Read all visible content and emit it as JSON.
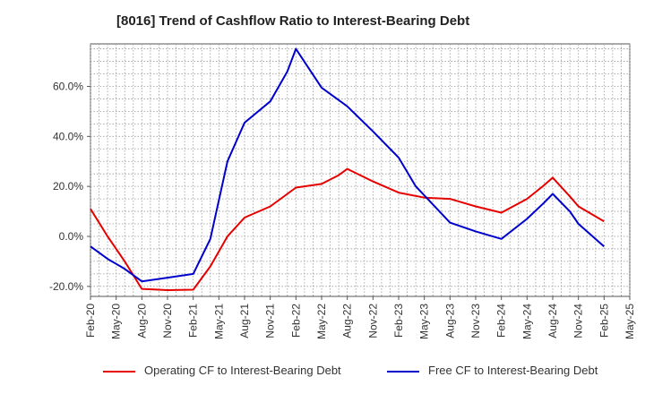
{
  "chart_data": {
    "type": "line",
    "title": "[8016]  Trend of Cashflow Ratio to Interest-Bearing Debt",
    "xlabel": "",
    "ylabel": "",
    "x_ticks": [
      "Feb-20",
      "May-20",
      "Aug-20",
      "Nov-20",
      "Feb-21",
      "May-21",
      "Aug-21",
      "Nov-21",
      "Feb-22",
      "May-22",
      "Aug-22",
      "Nov-22",
      "Feb-23",
      "May-23",
      "Aug-23",
      "Nov-23",
      "Feb-24",
      "May-24",
      "Aug-24",
      "Nov-24",
      "Feb-25",
      "May-25"
    ],
    "y_ticks": [
      "-20.0%",
      "0.0%",
      "20.0%",
      "40.0%",
      "60.0%"
    ],
    "y_tick_values": [
      -20,
      0,
      20,
      40,
      60
    ],
    "ylim": [
      -24,
      77
    ],
    "grid": true,
    "legend_position": "bottom",
    "series": [
      {
        "name": "Operating CF to Interest-Bearing Debt",
        "color": "#e60000",
        "points": [
          [
            "Feb-20",
            11
          ],
          [
            "Apr-20",
            0
          ],
          [
            "Jun-20",
            -10
          ],
          [
            "Aug-20",
            -21
          ],
          [
            "Nov-20",
            -21.5
          ],
          [
            "Feb-21",
            -21.3
          ],
          [
            "Apr-21",
            -12
          ],
          [
            "Jun-21",
            0
          ],
          [
            "Aug-21",
            7.5
          ],
          [
            "Nov-21",
            12
          ],
          [
            "Jan-22",
            17
          ],
          [
            "Feb-22",
            19.5
          ],
          [
            "May-22",
            21
          ],
          [
            "Jul-22",
            24.5
          ],
          [
            "Aug-22",
            27
          ],
          [
            "Nov-22",
            22
          ],
          [
            "Feb-23",
            17.5
          ],
          [
            "May-23",
            15.5
          ],
          [
            "Aug-23",
            15
          ],
          [
            "Nov-23",
            12
          ],
          [
            "Feb-24",
            9.5
          ],
          [
            "May-24",
            15
          ],
          [
            "Jul-24",
            20.5
          ],
          [
            "Aug-24",
            23.5
          ],
          [
            "Oct-24",
            16
          ],
          [
            "Nov-24",
            12
          ],
          [
            "Feb-25",
            6
          ]
        ]
      },
      {
        "name": "Free CF to Interest-Bearing Debt",
        "color": "#0000cc",
        "points": [
          [
            "Feb-20",
            -4
          ],
          [
            "Apr-20",
            -9
          ],
          [
            "Jun-20",
            -13
          ],
          [
            "Aug-20",
            -18
          ],
          [
            "Nov-20",
            -16.5
          ],
          [
            "Feb-21",
            -15
          ],
          [
            "Apr-21",
            -1
          ],
          [
            "Jun-21",
            30
          ],
          [
            "Aug-21",
            45.5
          ],
          [
            "Nov-21",
            54
          ],
          [
            "Jan-22",
            66
          ],
          [
            "Feb-22",
            75
          ],
          [
            "May-22",
            59.5
          ],
          [
            "Aug-22",
            52
          ],
          [
            "Nov-22",
            42
          ],
          [
            "Feb-23",
            31.5
          ],
          [
            "Apr-23",
            20
          ],
          [
            "Aug-23",
            5.5
          ],
          [
            "Nov-23",
            2
          ],
          [
            "Feb-24",
            -1
          ],
          [
            "May-24",
            7
          ],
          [
            "Jul-24",
            13.5
          ],
          [
            "Aug-24",
            17
          ],
          [
            "Oct-24",
            10
          ],
          [
            "Nov-24",
            5
          ],
          [
            "Feb-25",
            -4
          ]
        ]
      }
    ]
  }
}
